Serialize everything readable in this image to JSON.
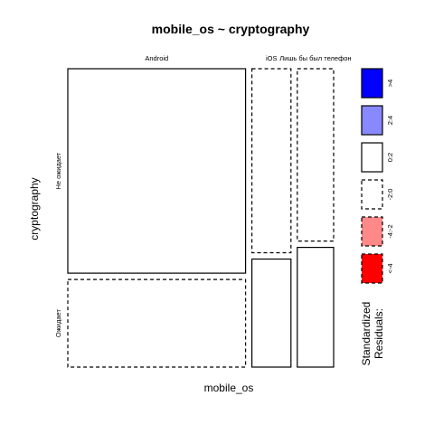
{
  "chart_data": {
    "type": "mosaic",
    "title": "mobile_os ~ cryptography",
    "xlabel": "mobile_os",
    "ylabel": "cryptography",
    "x_categories": [
      "Android",
      "iOS",
      "Лишь бы был телефон"
    ],
    "y_categories": [
      "Не ожидает",
      "Ожидает"
    ],
    "column_shares": [
      0.66,
      0.145,
      0.135
    ],
    "cells": [
      {
        "x": "Android",
        "y": "Не ожидает",
        "share": 0.7,
        "residual_band": "0:2"
      },
      {
        "x": "Android",
        "y": "Ожидает",
        "share": 0.3,
        "residual_band": "-2:0"
      },
      {
        "x": "iOS",
        "y": "Не ожидает",
        "share": 0.63,
        "residual_band": "-2:0"
      },
      {
        "x": "iOS",
        "y": "Ожидает",
        "share": 0.37,
        "residual_band": "0:2"
      },
      {
        "x": "Лишь бы был телефон",
        "y": "Не ожидает",
        "share": 0.59,
        "residual_band": "-2:0"
      },
      {
        "x": "Лишь бы был телефон",
        "y": "Ожидает",
        "share": 0.41,
        "residual_band": "0:2"
      }
    ],
    "legend": {
      "title": "Standardized Residuals:",
      "position": "right",
      "bands": [
        {
          "label": ">4",
          "color": "#0000ff",
          "dashed": false
        },
        {
          "label": "2:4",
          "color": "#8888ff",
          "dashed": false
        },
        {
          "label": "0:2",
          "color": "#ffffff",
          "dashed": false
        },
        {
          "label": "-2:0",
          "color": "#ffffff",
          "dashed": true
        },
        {
          "label": "-4:-2",
          "color": "#ff8888",
          "dashed": true
        },
        {
          "label": "<-4",
          "color": "#ff0000",
          "dashed": true
        }
      ]
    }
  }
}
